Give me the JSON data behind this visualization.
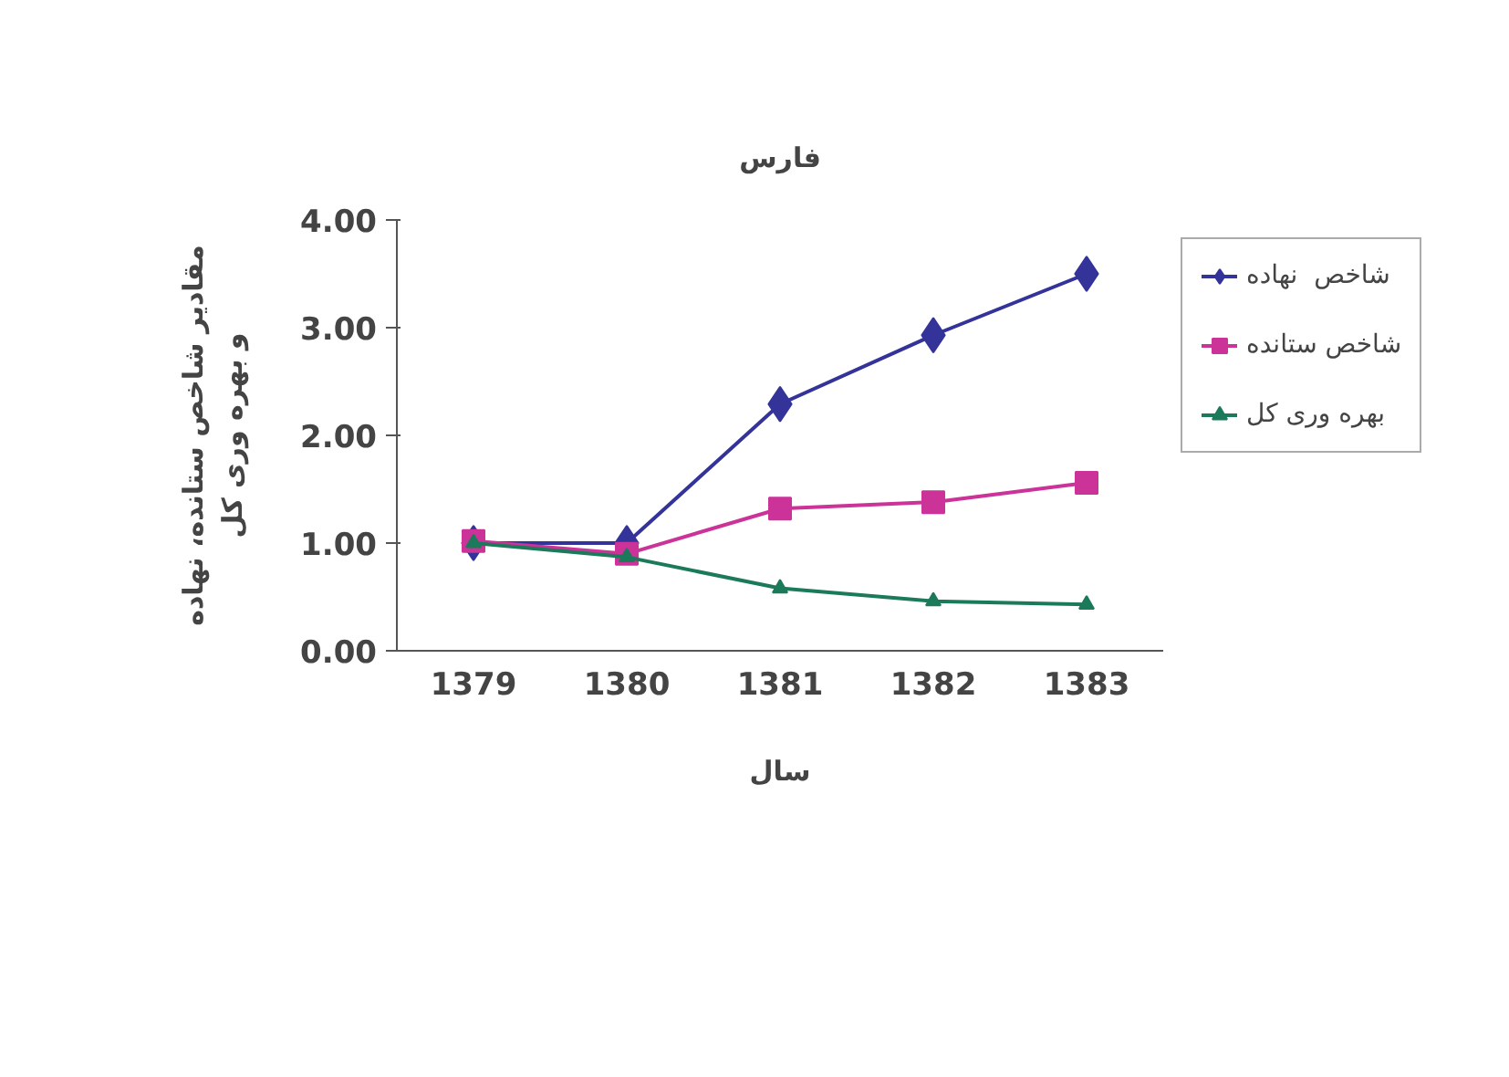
{
  "chart_data": {
    "type": "line",
    "title": "فارس",
    "xlabel": "سال",
    "ylabel": "مقادیر شاخص ستانده، نهاده\nو بهره وری کل",
    "categories": [
      "1379",
      "1380",
      "1381",
      "1382",
      "1383"
    ],
    "series": [
      {
        "name": "شاخص  نهاده",
        "color": "#333399",
        "marker": "diamond",
        "values": [
          1.0,
          1.0,
          2.29,
          2.93,
          3.5
        ]
      },
      {
        "name": "شاخص ستانده",
        "color": "#cc3399",
        "marker": "square",
        "values": [
          1.02,
          0.9,
          1.32,
          1.38,
          1.56
        ]
      },
      {
        "name": "بهره وری کل",
        "color": "#1b7a5a",
        "marker": "triangle",
        "values": [
          1.0,
          0.87,
          0.58,
          0.46,
          0.43
        ]
      }
    ],
    "ylim": [
      0,
      4
    ],
    "yticks": [
      {
        "value": 0,
        "label": "0.00"
      },
      {
        "value": 1,
        "label": "1.00"
      },
      {
        "value": 2,
        "label": "2.00"
      },
      {
        "value": 3,
        "label": "3.00"
      },
      {
        "value": 4,
        "label": "4.00"
      }
    ],
    "grid": false,
    "legend": "right",
    "line_style": "solid"
  }
}
